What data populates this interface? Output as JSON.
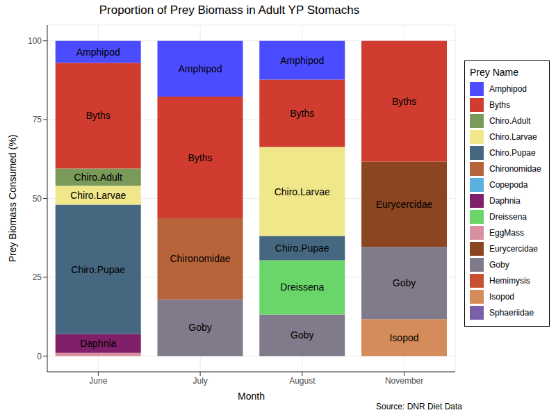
{
  "chart_data": {
    "type": "bar",
    "title": "Proportion of Prey Biomass in Adult YP Stomachs",
    "x_label": "Month",
    "y_label": "Prey Biomass Consumed (%)",
    "caption": "Source: DNR Diet Data",
    "legend_title": "Prey Name",
    "categories": [
      "June",
      "July",
      "August",
      "November"
    ],
    "series": [
      {
        "name": "Amphipod",
        "color": "#4b4bff",
        "values": [
          7,
          17.7,
          12.3,
          0
        ]
      },
      {
        "name": "Byths",
        "color": "#d03c30",
        "values": [
          33.5,
          38.6,
          21.4,
          38.3
        ]
      },
      {
        "name": "Chiro.Adult",
        "color": "#7a9a5a",
        "values": [
          5.5,
          0,
          0,
          0
        ]
      },
      {
        "name": "Chiro.Larvae",
        "color": "#f0e68a",
        "values": [
          6,
          0,
          28.2,
          0
        ]
      },
      {
        "name": "Chiro.Pupae",
        "color": "#456880",
        "values": [
          41,
          0,
          7.7,
          0
        ]
      },
      {
        "name": "Chironomidae",
        "color": "#b8643a",
        "values": [
          0,
          25.7,
          0,
          0
        ]
      },
      {
        "name": "Copepoda",
        "color": "#5ab0e0",
        "values": [
          0,
          0,
          0,
          0
        ]
      },
      {
        "name": "Daphnia",
        "color": "#80206a",
        "values": [
          6,
          0,
          0,
          0
        ]
      },
      {
        "name": "Dreissena",
        "color": "#6ad66a",
        "values": [
          0,
          0,
          17.2,
          0
        ]
      },
      {
        "name": "EggMass",
        "color": "#d890a0",
        "values": [
          1,
          0,
          0,
          0
        ]
      },
      {
        "name": "Eurycercidae",
        "color": "#8b4520",
        "values": [
          0,
          0,
          0,
          27.1
        ]
      },
      {
        "name": "Goby",
        "color": "#807a8a",
        "values": [
          0,
          18,
          13.2,
          22.9
        ]
      },
      {
        "name": "Hemimysis",
        "color": "#c85030",
        "values": [
          0,
          0,
          0,
          0
        ]
      },
      {
        "name": "Isopod",
        "color": "#d48c5a",
        "values": [
          0,
          0,
          0,
          11.7
        ]
      },
      {
        "name": "Sphaeriidae",
        "color": "#7a60a8",
        "values": [
          0,
          0,
          0,
          0
        ]
      }
    ],
    "ylim": [
      -5,
      105
    ],
    "yticks": [
      0,
      25,
      50,
      75,
      100
    ],
    "grid": true,
    "stacked": true,
    "legend": "right"
  }
}
